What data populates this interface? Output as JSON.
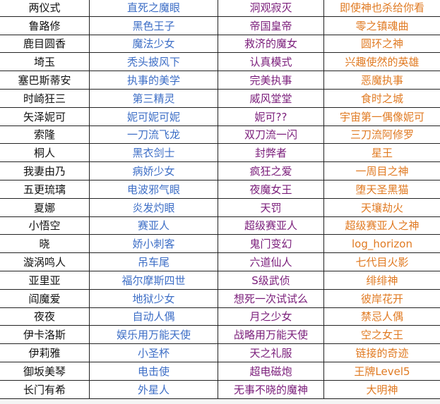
{
  "colors": {
    "col1": "#111111",
    "col2": "#3d6ec6",
    "col3": "#7a1d7a",
    "col4": "#e07a22"
  },
  "rows": [
    [
      "两仪式",
      "直死之魔眼",
      "洞观寂灭",
      "即使神也杀给你看"
    ],
    [
      "鲁路修",
      "黑色王子",
      "帝国皇帝",
      "零之镇魂曲"
    ],
    [
      "鹿目圆香",
      "魔法少女",
      "救济的魔女",
      "圆环之神"
    ],
    [
      "埼玉",
      "秃头披风下",
      "认真模式",
      "兴趣使然的英雄"
    ],
    [
      "塞巴斯蒂安",
      "执事的美学",
      "完美执事",
      "恶魔执事"
    ],
    [
      "时崎狂三",
      "第三精灵",
      "威风堂堂",
      "食时之城"
    ],
    [
      "矢泽妮可",
      "妮可妮可妮",
      "妮可??",
      "宇宙第一偶像妮可"
    ],
    [
      "索隆",
      "一刀流飞龙",
      "双刀流一闪",
      "三刀流阿修罗"
    ],
    [
      "桐人",
      "黑衣剑士",
      "封弊者",
      "星王"
    ],
    [
      "我妻由乃",
      "病娇少女",
      "疯狂之爱",
      "一周目之神"
    ],
    [
      "五更琉璃",
      "电波邪气眼",
      "夜魔女王",
      "堕天圣黑猫"
    ],
    [
      "夏娜",
      "炎发灼眼",
      "天罚",
      "天壤劫火"
    ],
    [
      "小悟空",
      "赛亚人",
      "超级赛亚人",
      "超级赛亚人之神"
    ],
    [
      "晓",
      "娇小刺客",
      "鬼门变幻",
      "log_horizon"
    ],
    [
      "漩涡鸣人",
      "吊车尾",
      "六道仙人",
      "七代目火影"
    ],
    [
      "亚里亚",
      "福尔摩斯四世",
      "S级武侦",
      "绯绯神"
    ],
    [
      "阎魔爱",
      "地狱少女",
      "想死一次试试么",
      "彼岸花开"
    ],
    [
      "夜夜",
      "自动人偶",
      "月之少女",
      "禁忌人偶"
    ],
    [
      "伊卡洛斯",
      "娱乐用万能天使",
      "战略用万能天使",
      "空之女王"
    ],
    [
      "伊莉雅",
      "小圣杯",
      "天之礼服",
      "链接的奇迹"
    ],
    [
      "御坂美琴",
      "电击使",
      "超电磁炮",
      "王牌Level5"
    ],
    [
      "长门有希",
      "外星人",
      "无事不晓的魔神",
      "大明神"
    ]
  ]
}
